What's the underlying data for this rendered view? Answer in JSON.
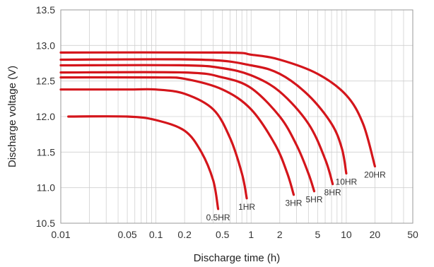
{
  "chart_data": {
    "type": "line",
    "title": "",
    "xlabel": "Discharge time (h)",
    "ylabel": "Discharge voltage (V)",
    "x_scale": "log",
    "xlim": [
      0.01,
      50
    ],
    "ylim": [
      10.5,
      13.5
    ],
    "x_ticks": [
      {
        "value": 0.01,
        "label": "0.01"
      },
      {
        "value": 0.05,
        "label": "0.05"
      },
      {
        "value": 0.1,
        "label": "0.1"
      },
      {
        "value": 0.2,
        "label": "0.2"
      },
      {
        "value": 0.5,
        "label": "0.5"
      },
      {
        "value": 1,
        "label": "1"
      },
      {
        "value": 2,
        "label": "2"
      },
      {
        "value": 5,
        "label": "5"
      },
      {
        "value": 10,
        "label": "10"
      },
      {
        "value": 20,
        "label": "20"
      },
      {
        "value": 50,
        "label": "50"
      }
    ],
    "y_ticks": [
      {
        "value": 10.5,
        "label": "10.5"
      },
      {
        "value": 11.0,
        "label": "11.0"
      },
      {
        "value": 11.5,
        "label": "11.5"
      },
      {
        "value": 12.0,
        "label": "12.0"
      },
      {
        "value": 12.5,
        "label": "12.5"
      },
      {
        "value": 13.0,
        "label": "13.0"
      },
      {
        "value": 13.5,
        "label": "13.5"
      }
    ],
    "grid": true,
    "line_color": "#d4151b",
    "series": [
      {
        "name": "0.5HR",
        "label": "0.5HR",
        "points": [
          [
            0.012,
            12.0
          ],
          [
            0.05,
            12.0
          ],
          [
            0.1,
            11.95
          ],
          [
            0.2,
            11.8
          ],
          [
            0.3,
            11.5
          ],
          [
            0.4,
            11.1
          ],
          [
            0.45,
            10.7
          ]
        ]
      },
      {
        "name": "1HR",
        "label": "1HR",
        "points": [
          [
            0.01,
            12.38
          ],
          [
            0.05,
            12.38
          ],
          [
            0.1,
            12.38
          ],
          [
            0.2,
            12.32
          ],
          [
            0.4,
            12.1
          ],
          [
            0.6,
            11.7
          ],
          [
            0.8,
            11.2
          ],
          [
            0.9,
            10.85
          ]
        ]
      },
      {
        "name": "3HR",
        "label": "3HR",
        "points": [
          [
            0.01,
            12.55
          ],
          [
            0.1,
            12.55
          ],
          [
            0.2,
            12.53
          ],
          [
            0.5,
            12.38
          ],
          [
            1,
            12.1
          ],
          [
            1.8,
            11.6
          ],
          [
            2.4,
            11.2
          ],
          [
            2.8,
            10.9
          ]
        ]
      },
      {
        "name": "5HR",
        "label": "5HR",
        "points": [
          [
            0.01,
            12.62
          ],
          [
            0.2,
            12.62
          ],
          [
            0.5,
            12.55
          ],
          [
            1,
            12.4
          ],
          [
            2,
            12.0
          ],
          [
            3,
            11.6
          ],
          [
            4,
            11.2
          ],
          [
            4.6,
            10.95
          ]
        ]
      },
      {
        "name": "8HR",
        "label": "8HR",
        "points": [
          [
            0.01,
            12.72
          ],
          [
            0.2,
            12.72
          ],
          [
            0.5,
            12.68
          ],
          [
            1,
            12.58
          ],
          [
            2,
            12.35
          ],
          [
            4,
            11.9
          ],
          [
            6,
            11.4
          ],
          [
            7.2,
            11.05
          ]
        ]
      },
      {
        "name": "10HR",
        "label": "10HR",
        "points": [
          [
            0.01,
            12.8
          ],
          [
            0.3,
            12.8
          ],
          [
            1,
            12.72
          ],
          [
            2,
            12.6
          ],
          [
            4,
            12.3
          ],
          [
            7,
            11.9
          ],
          [
            9,
            11.55
          ],
          [
            10,
            11.2
          ]
        ]
      },
      {
        "name": "20HR",
        "label": "20HR",
        "points": [
          [
            0.01,
            12.9
          ],
          [
            0.5,
            12.9
          ],
          [
            1,
            12.87
          ],
          [
            2,
            12.8
          ],
          [
            5,
            12.6
          ],
          [
            10,
            12.3
          ],
          [
            15,
            11.9
          ],
          [
            20,
            11.3
          ]
        ]
      }
    ]
  }
}
